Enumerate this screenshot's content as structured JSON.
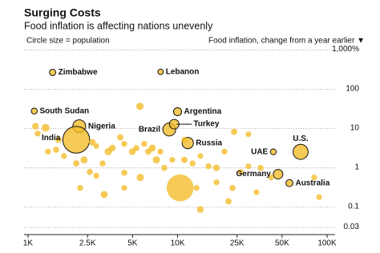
{
  "chart_data": {
    "type": "bubble",
    "title": "Surging Costs",
    "subtitle": "Food inflation is affecting nations unevenly",
    "size_note": "Circle size = population",
    "y_label": "Food inflation, change from a year earlier ▼",
    "log_x": true,
    "log_y": true,
    "grid": true,
    "color": "#f2bd2c",
    "xlim": [
      1000,
      100000
    ],
    "xticks": [
      {
        "value": 1000,
        "label": "1K"
      },
      {
        "value": 2500,
        "label": "2.5K"
      },
      {
        "value": 5000,
        "label": "5K"
      },
      {
        "value": 10000,
        "label": "10K"
      },
      {
        "value": 25000,
        "label": "25K"
      },
      {
        "value": 50000,
        "label": "50K"
      },
      {
        "value": 100000,
        "label": "100K"
      }
    ],
    "ylim": [
      0.02,
      1300
    ],
    "yticks": [
      {
        "value": 1000,
        "label": "1,000%"
      },
      100,
      10,
      1,
      0.1,
      0.03
    ],
    "labels": [
      "Zimbabwe",
      "Lebanon",
      "South Sudan",
      "Argentina",
      "Nigeria",
      "Brazil",
      "Turkey",
      "India",
      "Russia",
      "UAE",
      "U.S.",
      "Germany",
      "Australia",
      null,
      null,
      null,
      null,
      null,
      null,
      null,
      null,
      null,
      null,
      null,
      null,
      null,
      null,
      null,
      null,
      null,
      null,
      null,
      null,
      null,
      null,
      null,
      null,
      null,
      null,
      null,
      null,
      null,
      null,
      null,
      null,
      null,
      null,
      null,
      null,
      null,
      null,
      null,
      null,
      null,
      null,
      null,
      null,
      null,
      null,
      null,
      null,
      null,
      null,
      null,
      null,
      null,
      null,
      null
    ],
    "x": [
      1460,
      7700,
      1100,
      10000,
      2200,
      8800,
      9500,
      2100,
      11700,
      43700,
      66500,
      47000,
      56000,
      10400,
      5600,
      1120,
      1310,
      1160,
      1600,
      1360,
      1540,
      1740,
      2100,
      2370,
      2860,
      2690,
      3150,
      3440,
      3660,
      4140,
      4400,
      4980,
      5300,
      5990,
      6370,
      6780,
      7210,
      7670,
      8160,
      9230,
      11100,
      12600,
      14200,
      16100,
      18200,
      20600,
      23900,
      26400,
      29800,
      35900,
      42200,
      33700,
      23300,
      14200,
      13400,
      3230,
      2230,
      4400,
      5630,
      4400,
      2860,
      82000,
      88400,
      21900,
      18200,
      29800,
      11100,
      2590
    ],
    "y": [
      270,
      280,
      28,
      27,
      11.5,
      9.5,
      13,
      5.2,
      4.3,
      2.56,
      2.56,
      0.69,
      0.41,
      0.31,
      37,
      11.5,
      10.5,
      7.5,
      5.2,
      2.6,
      2.9,
      2,
      1.3,
      1.6,
      3.6,
      4.5,
      1.3,
      2.6,
      3.2,
      6,
      4.1,
      2.6,
      3.2,
      4.1,
      2.6,
      3.2,
      1.6,
      2.6,
      1,
      1.6,
      1.6,
      1.3,
      2,
      1.1,
      1,
      2.6,
      8.3,
      0.79,
      1.1,
      1,
      0.57,
      0.24,
      0.31,
      0.087,
      0.31,
      0.21,
      0.31,
      0.31,
      0.57,
      0.75,
      0.63,
      0.57,
      0.18,
      0.14,
      0.43,
      7.2,
      5.2,
      0.79
    ],
    "size": [
      15,
      5.5,
      11,
      45,
      210,
      215,
      85,
      1400,
      144,
      10,
      330,
      83,
      26,
      1410,
      30,
      20,
      40,
      10,
      15,
      10,
      12,
      10,
      15,
      25,
      8,
      20,
      10,
      30,
      20,
      15,
      10,
      20,
      12,
      10,
      15,
      25,
      30,
      10,
      12,
      8,
      15,
      10,
      8,
      10,
      20,
      10,
      15,
      10,
      8,
      12,
      10,
      8,
      12,
      20,
      10,
      25,
      10,
      8,
      30,
      12,
      10,
      10,
      8,
      15,
      10,
      8,
      10,
      12
    ]
  }
}
